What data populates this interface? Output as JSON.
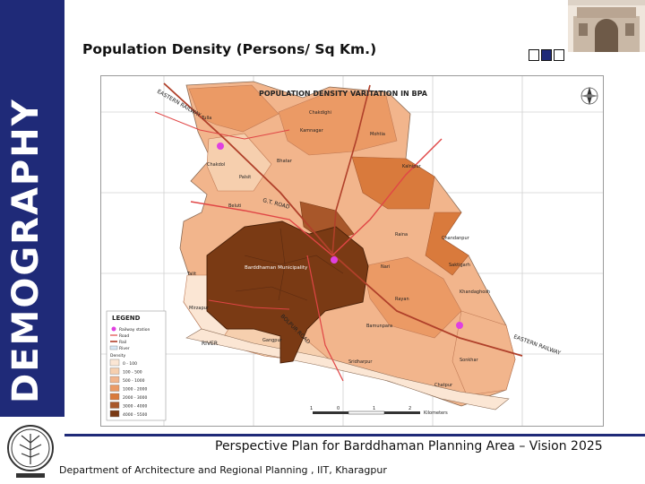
{
  "sidebar": {
    "vertical_title": "DEMOGRAPHY"
  },
  "slide": {
    "title": "Population Density (Persons/ Sq Km.)",
    "footer_title": "Perspective Plan for Barddhaman Planning Area – Vision 2025",
    "footer_dept": "Department of Architecture and Regional Planning , IIT, Kharagpur"
  },
  "map": {
    "title": "POPULATION DENSITY VARITATION IN BPA",
    "labels": {
      "eastern_railway_n": "EASTERN RAILWAY",
      "eastern_railway_se": "EASTERN RAILWAY",
      "gt_road": "G.T. ROAD",
      "bolpur_road": "BOLPUR ROAD",
      "river": "RIVER",
      "municipality": "Barddhaman Municipality",
      "place_1": "Tulla",
      "place_2": "Kamnagar",
      "place_3": "Mohtia",
      "place_4": "Chakdighi",
      "place_5": "Chakdol",
      "place_6": "Kalnipur",
      "place_7": "Palsit",
      "place_8": "Nari",
      "place_9": "Raina",
      "place_10": "Bhatar",
      "place_11": "Saktigarh",
      "place_12": "Khandaghosh",
      "place_13": "Talit",
      "place_14": "Mirzapur",
      "place_15": "Bamunpara",
      "place_16": "Chatpur",
      "place_17": "Sonkhar",
      "place_18": "Rayan",
      "place_19": "Beluti",
      "place_20": "Chandanpur",
      "place_21": "Sridharpur",
      "place_22": "Gangpur"
    },
    "legend": {
      "heading": "LEGEND",
      "railway": "Railway station",
      "road": "Road",
      "rail": "Rail",
      "river": "River",
      "density_heading": "Density",
      "classes": [
        "0 - 100",
        "100 - 500",
        "500 - 1000",
        "1000 - 2000",
        "2000 - 3000",
        "3000 - 4000",
        "4000 - 5500"
      ],
      "colors": [
        "#fbe6d4",
        "#f6cfae",
        "#f2b58c",
        "#eb9a65",
        "#d97a3c",
        "#a8572a",
        "#7a3a14"
      ]
    },
    "scale": {
      "ticks": [
        "1",
        "0",
        "1",
        "2"
      ],
      "unit": "Kilometers"
    },
    "north_arrow": "north-arrow-icon"
  },
  "colors": {
    "brand_blue": "#1f2a78",
    "railway_line": "#b0402a",
    "road_line": "#e04545",
    "station": "#e040e0"
  }
}
